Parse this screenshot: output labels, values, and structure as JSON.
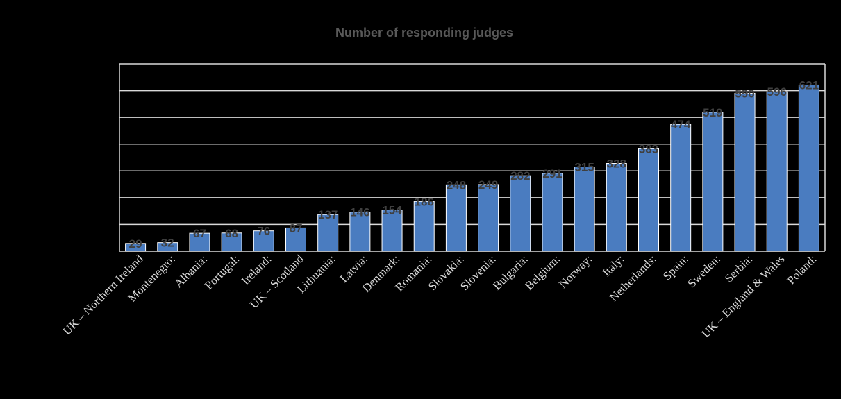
{
  "chart_data": {
    "type": "bar",
    "title": "Number of responding judges",
    "xlabel": "",
    "ylabel": "",
    "ylim": [
      0,
      700
    ],
    "grid": true,
    "legend": "none",
    "categories": [
      "UK – Northern Ireland",
      "Montenegro:",
      "Albania:",
      "Portugal:",
      "Ireland:",
      "UK – Scotland",
      "Lithuania:",
      "Latvia:",
      "Denmark:",
      "Romania:",
      "Slovakia:",
      "Slovenia:",
      "Bulgaria:",
      "Belgium:",
      "Norway:",
      "Italy:",
      "Netherlands:",
      "Spain:",
      "Sweden:",
      "Serbia:",
      "UK – England & Wales",
      "Poland:"
    ],
    "values": [
      29,
      32,
      67,
      68,
      76,
      87,
      137,
      146,
      154,
      186,
      248,
      249,
      282,
      291,
      315,
      328,
      383,
      474,
      519,
      590,
      596,
      621
    ],
    "colors": {
      "bar": "#4a7cc0",
      "bar_edge": "#ffffff",
      "grid": "#d9d9d9",
      "background": "#000000"
    }
  }
}
